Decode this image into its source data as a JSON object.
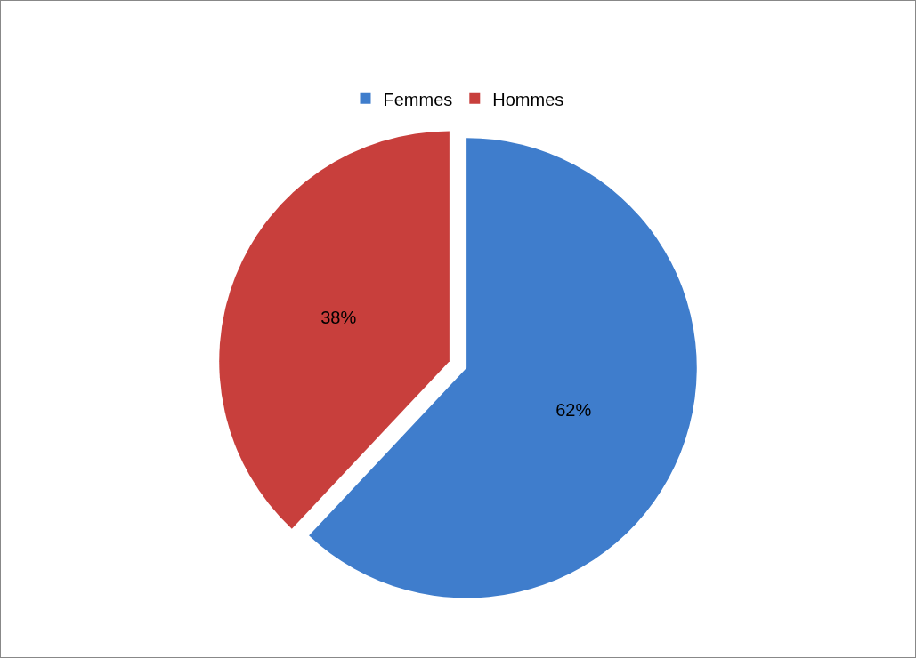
{
  "chart_data": {
    "type": "pie",
    "categories": [
      "Femmes",
      "Hommes"
    ],
    "values": [
      62,
      38
    ],
    "value_labels": [
      "62%",
      "38%"
    ],
    "colors": [
      "#3f7dcc",
      "#c83f3c"
    ],
    "legend": "top"
  }
}
